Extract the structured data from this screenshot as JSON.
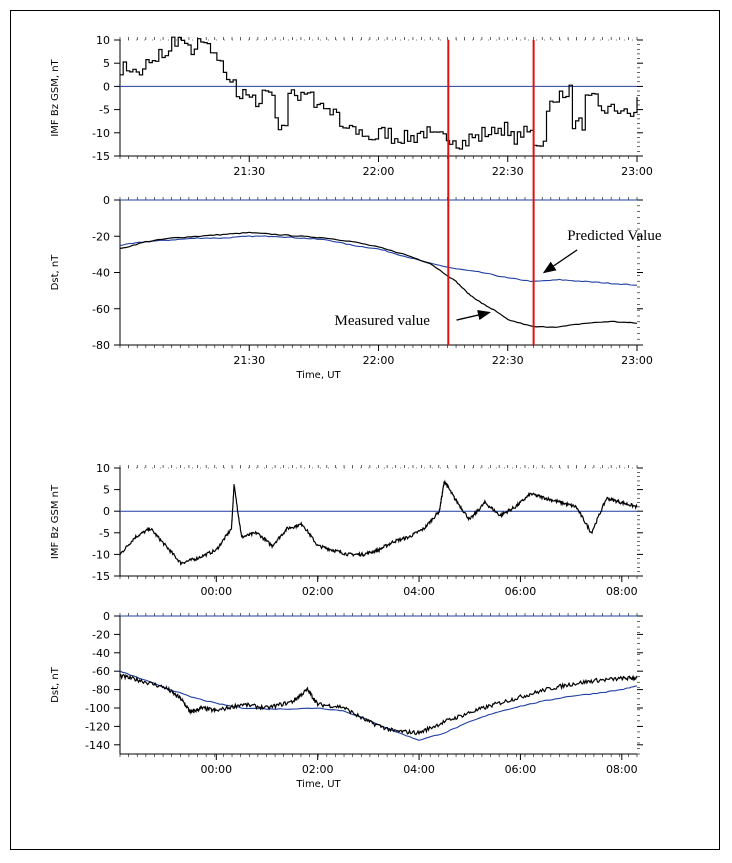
{
  "colors": {
    "measured": "#000000",
    "predicted": "#1f3fa0",
    "zero_line": "#1f3fa0",
    "marker": "#e01010"
  },
  "chart_data": [
    {
      "id": "imf1",
      "type": "line",
      "ylabel": "IMF Bz GSM, nT",
      "xlabel": "",
      "xlim": [
        21.0,
        23.0
      ],
      "ylim": [
        -15,
        10
      ],
      "yticks": [
        -15,
        -10,
        -5,
        0,
        5,
        10
      ],
      "xticks": [
        {
          "v": 21.5,
          "label": "21:30"
        },
        {
          "v": 22.0,
          "label": "22:00"
        },
        {
          "v": 22.5,
          "label": "22:30"
        },
        {
          "v": 23.0,
          "label": "23:00"
        }
      ],
      "zero_line": true,
      "vlines": [
        22.27,
        22.6
      ],
      "series": [
        {
          "style": "measured",
          "step": true,
          "x": [
            21.0,
            21.05,
            21.1,
            21.15,
            21.2,
            21.25,
            21.3,
            21.35,
            21.4,
            21.45,
            21.5,
            21.55,
            21.6,
            21.65,
            21.7,
            21.75,
            21.8,
            21.85,
            21.9,
            21.95,
            22.0,
            22.05,
            22.1,
            22.15,
            22.2,
            22.25,
            22.3,
            22.35,
            22.4,
            22.45,
            22.5,
            22.55,
            22.6,
            22.65,
            22.7,
            22.75,
            22.8,
            22.85,
            22.9,
            22.95,
            23.0
          ],
          "y": [
            4,
            3,
            5,
            7,
            10,
            8,
            9,
            6,
            2,
            -2,
            -3,
            -1,
            -8,
            -2,
            -1,
            -4,
            -6,
            -9,
            -10,
            -11,
            -10,
            -11,
            -11,
            -10,
            -11,
            -11,
            -12,
            -11,
            -10,
            -9,
            -11,
            -10,
            -12,
            -4,
            -1,
            -8,
            -3,
            -5,
            -5,
            -6,
            -3
          ]
        }
      ]
    },
    {
      "id": "dst1",
      "type": "line",
      "ylabel": "Dst, nT",
      "xlabel": "Time, UT",
      "xlim": [
        21.0,
        23.0
      ],
      "ylim": [
        -80,
        0
      ],
      "yticks": [
        -80,
        -60,
        -40,
        -20,
        0
      ],
      "xticks": [
        {
          "v": 21.5,
          "label": "21:30"
        },
        {
          "v": 22.0,
          "label": "22:00"
        },
        {
          "v": 22.5,
          "label": "22:30"
        },
        {
          "v": 23.0,
          "label": "23:00"
        }
      ],
      "zero_line": true,
      "vlines": [
        22.27,
        22.6
      ],
      "series": [
        {
          "style": "predicted",
          "x": [
            21.0,
            21.1,
            21.2,
            21.3,
            21.4,
            21.5,
            21.6,
            21.7,
            21.8,
            21.9,
            22.0,
            22.1,
            22.2,
            22.3,
            22.4,
            22.5,
            22.6,
            22.7,
            22.8,
            22.9,
            23.0
          ],
          "y": [
            -25,
            -23,
            -22,
            -21,
            -21,
            -20,
            -20,
            -21,
            -22,
            -25,
            -27,
            -31,
            -35,
            -38,
            -40,
            -43,
            -45,
            -44,
            -45,
            -46,
            -47
          ]
        },
        {
          "style": "measured",
          "x": [
            21.0,
            21.1,
            21.2,
            21.3,
            21.4,
            21.5,
            21.6,
            21.7,
            21.8,
            21.9,
            22.0,
            22.1,
            22.2,
            22.3,
            22.35,
            22.4,
            22.45,
            22.5,
            22.6,
            22.7,
            22.8,
            22.9,
            23.0
          ],
          "y": [
            -27,
            -23,
            -21,
            -20,
            -19,
            -18,
            -19,
            -20,
            -21,
            -23,
            -26,
            -30,
            -35,
            -45,
            -52,
            -57,
            -61,
            -66,
            -70,
            -70,
            -68,
            -67,
            -68
          ]
        }
      ],
      "annotations": [
        {
          "text": "Predicted Value",
          "tx": 22.73,
          "ty": -22,
          "ax": 22.64,
          "ay": -40
        },
        {
          "text": "Measured value",
          "tx": 21.83,
          "ty": -69,
          "ax": 22.43,
          "ay": -62
        }
      ]
    },
    {
      "id": "imf2",
      "type": "line",
      "ylabel": "IMF Bz GSM nT",
      "xlabel": "",
      "xlim": [
        -1.9,
        8.3
      ],
      "ylim": [
        -15,
        10
      ],
      "yticks": [
        -15,
        -10,
        -5,
        0,
        5,
        10
      ],
      "xticks": [
        {
          "v": 0,
          "label": "00:00"
        },
        {
          "v": 2,
          "label": "02:00"
        },
        {
          "v": 4,
          "label": "04:00"
        },
        {
          "v": 6,
          "label": "06:00"
        },
        {
          "v": 8,
          "label": "08:00"
        }
      ],
      "zero_line": true,
      "series": [
        {
          "style": "measured",
          "noisy": true,
          "x": [
            -1.9,
            -1.6,
            -1.3,
            -1.0,
            -0.7,
            -0.4,
            0.0,
            0.3,
            0.35,
            0.5,
            0.8,
            1.1,
            1.4,
            1.7,
            2.0,
            2.3,
            2.6,
            2.9,
            3.2,
            3.5,
            3.8,
            4.1,
            4.4,
            4.5,
            4.7,
            5.0,
            5.3,
            5.6,
            5.9,
            6.2,
            6.5,
            6.8,
            7.1,
            7.4,
            7.7,
            8.0,
            8.3
          ],
          "y": [
            -10,
            -6,
            -4,
            -8,
            -12,
            -11,
            -9,
            -4,
            6,
            -6,
            -5,
            -8,
            -4,
            -3,
            -8,
            -9,
            -10,
            -10,
            -9,
            -7,
            -6,
            -4,
            0,
            7,
            3,
            -2,
            2,
            -1,
            1,
            4,
            3,
            2,
            1,
            -5,
            3,
            2,
            1
          ]
        }
      ]
    },
    {
      "id": "dst2",
      "type": "line",
      "ylabel": "Dst, nT",
      "xlabel": "Time, UT",
      "xlim": [
        -1.9,
        8.3
      ],
      "ylim": [
        -150,
        0
      ],
      "yticks": [
        -140,
        -120,
        -100,
        -80,
        -60,
        -40,
        -20,
        0
      ],
      "xticks": [
        {
          "v": 0,
          "label": "00:00"
        },
        {
          "v": 2,
          "label": "02:00"
        },
        {
          "v": 4,
          "label": "04:00"
        },
        {
          "v": 6,
          "label": "06:00"
        },
        {
          "v": 8,
          "label": "08:00"
        }
      ],
      "zero_line": true,
      "series": [
        {
          "style": "predicted",
          "x": [
            -1.9,
            -1.5,
            -1.0,
            -0.5,
            0.0,
            0.5,
            1.0,
            1.5,
            2.0,
            2.5,
            3.0,
            3.5,
            4.0,
            4.5,
            5.0,
            5.5,
            6.0,
            6.5,
            7.0,
            7.5,
            8.0,
            8.3
          ],
          "y": [
            -60,
            -68,
            -78,
            -88,
            -95,
            -100,
            -101,
            -101,
            -100,
            -103,
            -113,
            -125,
            -135,
            -127,
            -115,
            -105,
            -98,
            -92,
            -87,
            -84,
            -80,
            -76
          ]
        },
        {
          "style": "measured",
          "noisy": true,
          "x": [
            -1.9,
            -1.5,
            -1.0,
            -0.7,
            -0.5,
            -0.3,
            0.0,
            0.5,
            1.0,
            1.5,
            1.8,
            2.0,
            2.5,
            3.0,
            3.5,
            4.0,
            4.5,
            5.0,
            5.5,
            6.0,
            6.5,
            7.0,
            7.5,
            8.0,
            8.3
          ],
          "y": [
            -65,
            -70,
            -78,
            -90,
            -105,
            -100,
            -103,
            -96,
            -100,
            -93,
            -80,
            -96,
            -99,
            -115,
            -125,
            -127,
            -115,
            -105,
            -96,
            -88,
            -80,
            -74,
            -70,
            -68,
            -67
          ]
        }
      ]
    }
  ]
}
